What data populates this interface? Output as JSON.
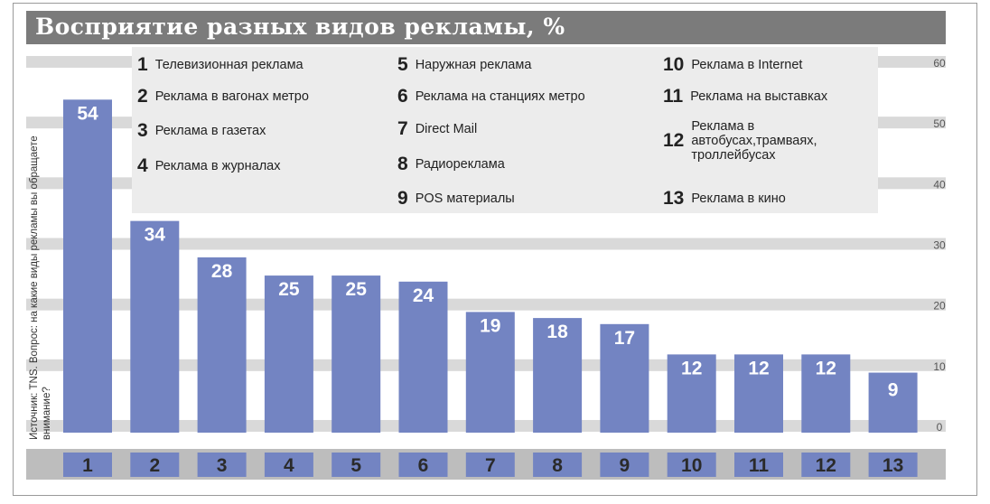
{
  "chart_data": {
    "type": "bar",
    "title": "Восприятие разных видов рекламы, %",
    "categories": [
      "1",
      "2",
      "3",
      "4",
      "5",
      "6",
      "7",
      "8",
      "9",
      "10",
      "11",
      "12",
      "13"
    ],
    "values": [
      54,
      34,
      28,
      25,
      25,
      24,
      19,
      18,
      17,
      12,
      12,
      12,
      9
    ],
    "ylim": [
      0,
      60
    ],
    "yticks": [
      "0",
      "10",
      "20",
      "30",
      "40",
      "50",
      "60"
    ],
    "grid": true,
    "bar_color": "#7384c2",
    "legend": [
      {
        "num": "1",
        "label": "Телевизионная реклама"
      },
      {
        "num": "2",
        "label": "Реклама в вагонах метро"
      },
      {
        "num": "3",
        "label": "Реклама в газетах"
      },
      {
        "num": "4",
        "label": "Реклама в журналах"
      },
      {
        "num": "5",
        "label": "Наружная реклама"
      },
      {
        "num": "6",
        "label": "Реклама на станциях метро"
      },
      {
        "num": "7",
        "label": "Direct Mail"
      },
      {
        "num": "8",
        "label": "Радиореклама"
      },
      {
        "num": "9",
        "label": "POS материалы"
      },
      {
        "num": "10",
        "label": "Реклама в Internet"
      },
      {
        "num": "11",
        "label": "Реклама на выставках"
      },
      {
        "num": "12",
        "label": "Реклама в автобусах,трамваях, троллейбусах"
      },
      {
        "num": "13",
        "label": "Реклама в кино"
      }
    ],
    "source_note": "Источник: TNS. Вопрос: на какие виды рекламы вы обращаете внимание?"
  }
}
